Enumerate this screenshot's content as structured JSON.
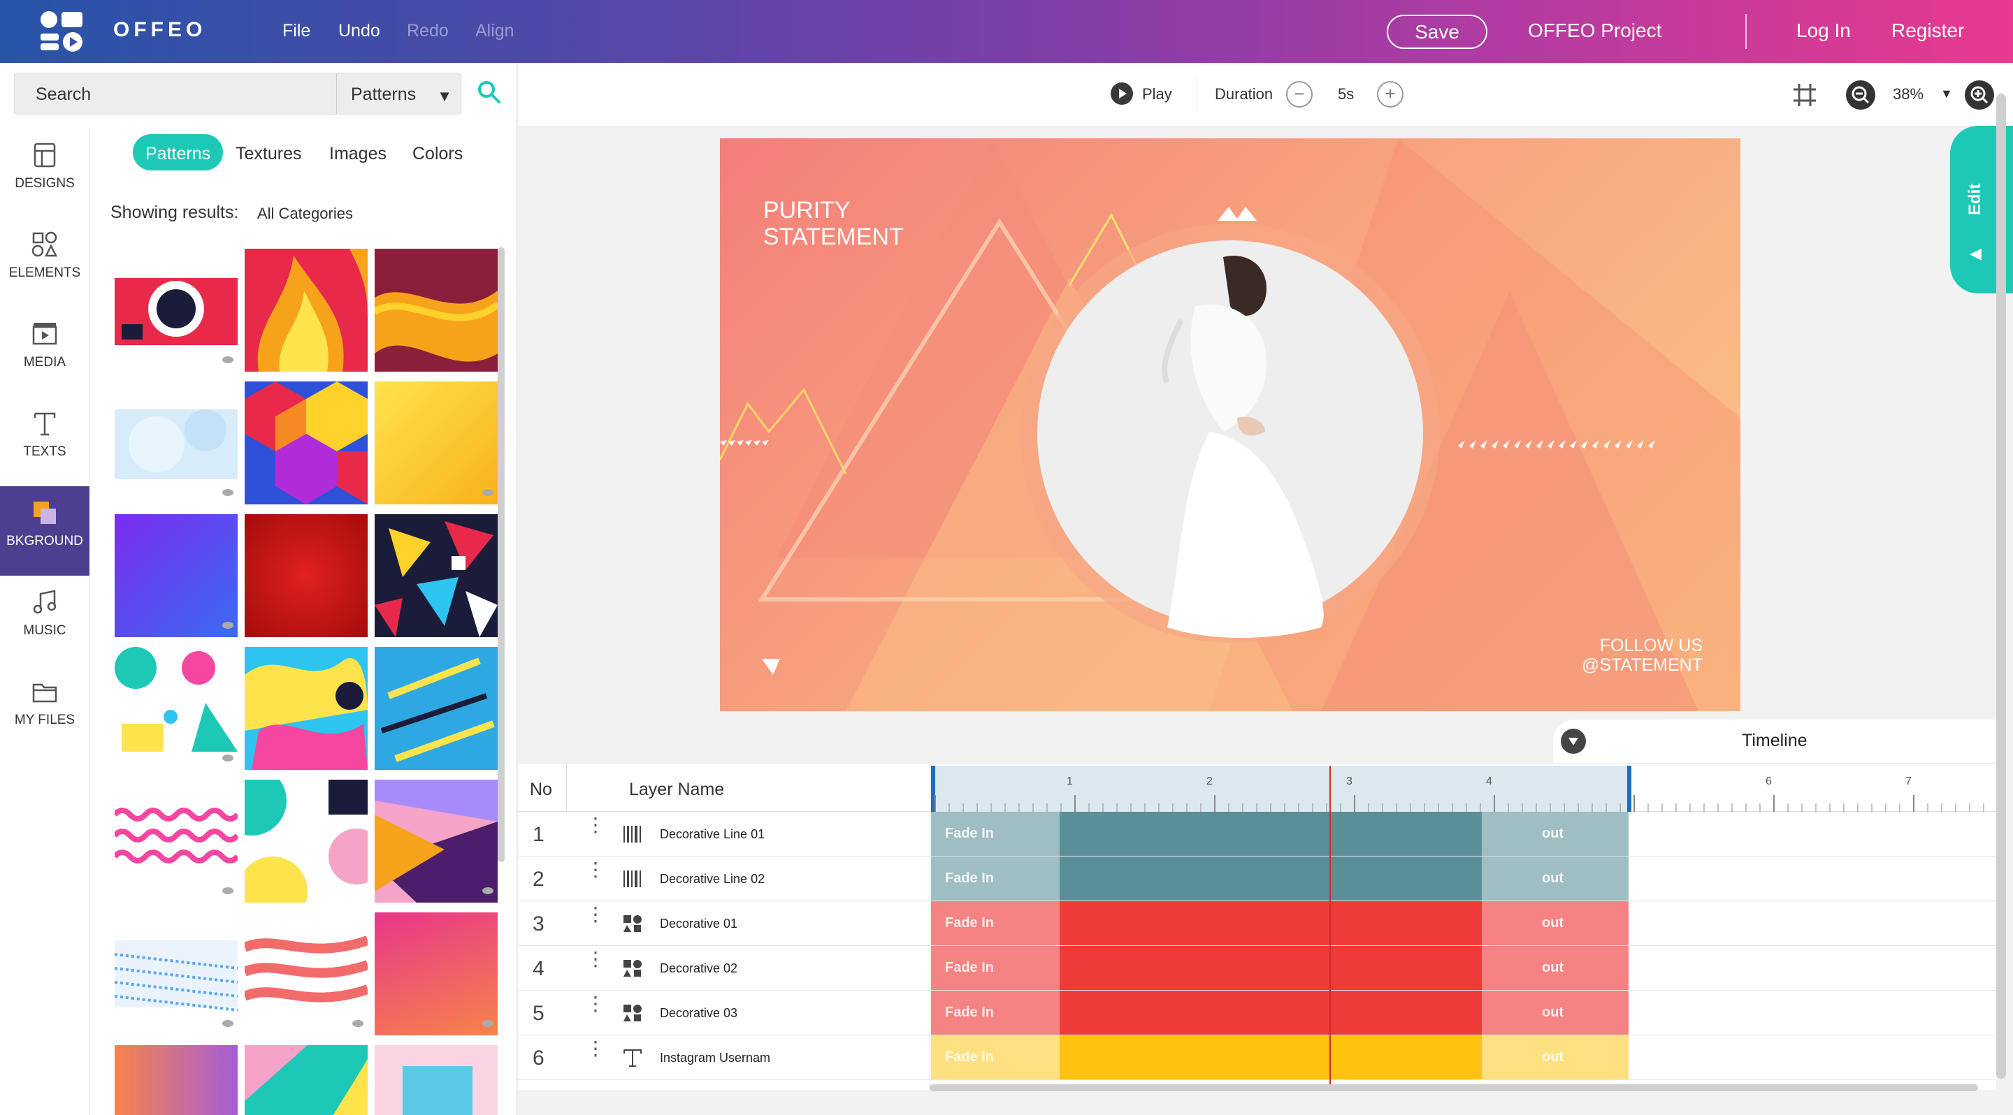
{
  "header": {
    "brand": "OFFEO",
    "menu": [
      {
        "label": "File",
        "enabled": true
      },
      {
        "label": "Undo",
        "enabled": true
      },
      {
        "label": "Redo",
        "enabled": false
      },
      {
        "label": "Align",
        "enabled": false
      }
    ],
    "save_label": "Save",
    "project_name": "OFFEO Project",
    "login_label": "Log In",
    "register_label": "Register"
  },
  "search": {
    "placeholder": "Search",
    "category": "Patterns"
  },
  "sidebar": {
    "items": [
      {
        "label": "DESIGNS",
        "icon": "designs-icon",
        "active": false
      },
      {
        "label": "ELEMENTS",
        "icon": "elements-icon",
        "active": false
      },
      {
        "label": "MEDIA",
        "icon": "media-icon",
        "active": false
      },
      {
        "label": "TEXTS",
        "icon": "texts-icon",
        "active": false
      },
      {
        "label": "BKGROUND",
        "icon": "background-icon",
        "active": true
      },
      {
        "label": "MUSIC",
        "icon": "music-icon",
        "active": false
      },
      {
        "label": "MY FILES",
        "icon": "folder-icon",
        "active": false
      }
    ]
  },
  "panel": {
    "tabs": [
      {
        "label": "Patterns",
        "active": true
      },
      {
        "label": "Textures",
        "active": false
      },
      {
        "label": "Images",
        "active": false
      },
      {
        "label": "Colors",
        "active": false
      }
    ],
    "showing_label": "Showing results:",
    "showing_value": "All Categories"
  },
  "controls": {
    "play_label": "Play",
    "duration_label": "Duration",
    "duration_value": "5s",
    "zoom_value": "38%"
  },
  "canvas": {
    "title_line1": "PURITY",
    "title_line2": "STATEMENT",
    "follow_line1": "FOLLOW US",
    "follow_line2": "@STATEMENT"
  },
  "edit_label": "Edit",
  "timeline": {
    "title": "Timeline",
    "col_no": "No",
    "col_layer": "Layer Name",
    "ticks": [
      "1",
      "2",
      "3",
      "4",
      "6",
      "7"
    ],
    "fade_in_label": "Fade In",
    "out_label": "out",
    "layers": [
      {
        "no": "1",
        "name": "Decorative Line 01",
        "type_icon": "barcode-icon",
        "color": "#5a8f97"
      },
      {
        "no": "2",
        "name": "Decorative Line 02",
        "type_icon": "barcode-icon",
        "color": "#5a8f97"
      },
      {
        "no": "3",
        "name": "Decorative 01",
        "type_icon": "shapes-icon",
        "color": "#ef3a3a"
      },
      {
        "no": "4",
        "name": "Decorative 02",
        "type_icon": "shapes-icon",
        "color": "#ef3a3a"
      },
      {
        "no": "5",
        "name": "Decorative 03",
        "type_icon": "shapes-icon",
        "color": "#ef3a3a"
      },
      {
        "no": "6",
        "name": "Instagram Usernam",
        "type_icon": "text-icon",
        "color": "#ffc20e"
      }
    ]
  },
  "colors": {
    "accent": "#1ec8b6",
    "sidebar_active": "#4c3f8f",
    "playhead": "#d42a2a"
  }
}
